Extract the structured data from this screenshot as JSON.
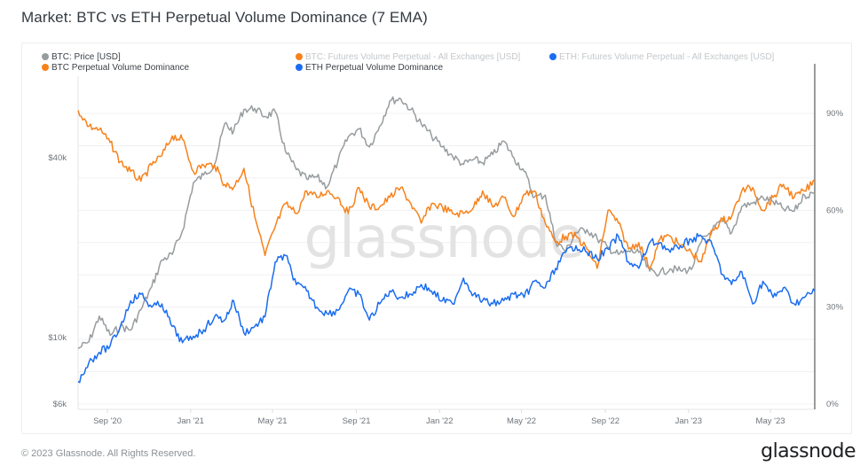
{
  "title": "Market: BTC vs ETH Perpetual Volume Dominance (7 EMA)",
  "footer": {
    "copyright": "© 2023 Glassnode. All Rights Reserved.",
    "brand": "glassnode"
  },
  "watermark": "glassnode",
  "colors": {
    "btc_price": "#979c9f",
    "btc_dominance": "#f7821b",
    "eth_dominance": "#1a6cf0",
    "grid": "#f0f0f0",
    "axis_text": "#6e747a"
  },
  "legend": [
    {
      "label": "BTC: Price [USD]",
      "color": "#979c9f",
      "active": true
    },
    {
      "label": "BTC Perpetual Volume Dominance",
      "color": "#f7821b",
      "active": true
    },
    {
      "label": "BTC: Futures Volume Perpetual - All Exchanges [USD]",
      "color": "#f7821b",
      "active": false
    },
    {
      "label": "ETH Perpetual Volume Dominance",
      "color": "#1a6cf0",
      "active": true
    },
    {
      "label": "ETH: Futures Volume Perpetual - All Exchanges [USD]",
      "color": "#1a6cf0",
      "active": false
    }
  ],
  "chart_data": {
    "type": "line",
    "title": "Market: BTC vs ETH Perpetual Volume Dominance (7 EMA)",
    "xlabel": "",
    "x_range": [
      "2020-07-20",
      "2023-07-05"
    ],
    "x_ticks": [
      "Sep '20",
      "Jan '21",
      "May '21",
      "Sep '21",
      "Jan '22",
      "May '22",
      "Sep '22",
      "Jan '23",
      "May '23"
    ],
    "x_tick_dates": [
      "2020-09-01",
      "2021-01-01",
      "2021-05-01",
      "2021-09-01",
      "2022-01-01",
      "2022-05-01",
      "2022-09-01",
      "2023-01-01",
      "2023-05-01"
    ],
    "y_left": {
      "label": "BTC Price [USD]",
      "scale": "log",
      "range": [
        6000,
        75000
      ],
      "ticks": [
        "$6k",
        "$10k",
        "$40k"
      ],
      "tick_values": [
        6000,
        10000,
        40000
      ]
    },
    "y_right": {
      "label": "Dominance",
      "scale": "linear",
      "range": [
        0,
        100
      ],
      "ticks": [
        "0%",
        "30%",
        "60%",
        "90%"
      ],
      "tick_values": [
        0,
        30,
        60,
        90
      ]
    },
    "grid": true,
    "legend_position": "top",
    "x_dates": [
      "2020-07-20",
      "2020-08-05",
      "2020-08-20",
      "2020-09-05",
      "2020-09-20",
      "2020-10-05",
      "2020-10-20",
      "2020-11-05",
      "2020-11-20",
      "2020-12-05",
      "2020-12-20",
      "2021-01-05",
      "2021-01-20",
      "2021-02-05",
      "2021-02-20",
      "2021-03-05",
      "2021-03-20",
      "2021-04-05",
      "2021-04-20",
      "2021-05-05",
      "2021-05-20",
      "2021-06-05",
      "2021-06-20",
      "2021-07-05",
      "2021-07-20",
      "2021-08-05",
      "2021-08-20",
      "2021-09-05",
      "2021-09-20",
      "2021-10-05",
      "2021-10-20",
      "2021-11-05",
      "2021-11-20",
      "2021-12-05",
      "2021-12-20",
      "2022-01-05",
      "2022-01-20",
      "2022-02-05",
      "2022-02-20",
      "2022-03-05",
      "2022-03-20",
      "2022-04-05",
      "2022-04-20",
      "2022-05-05",
      "2022-05-20",
      "2022-06-05",
      "2022-06-20",
      "2022-07-05",
      "2022-07-20",
      "2022-08-05",
      "2022-08-20",
      "2022-09-05",
      "2022-09-20",
      "2022-10-05",
      "2022-10-20",
      "2022-11-05",
      "2022-11-20",
      "2022-12-05",
      "2022-12-20",
      "2023-01-05",
      "2023-01-20",
      "2023-02-05",
      "2023-02-20",
      "2023-03-05",
      "2023-03-20",
      "2023-04-05",
      "2023-04-20",
      "2023-05-05",
      "2023-05-20",
      "2023-06-05",
      "2023-06-20",
      "2023-07-05"
    ],
    "series": [
      {
        "name": "BTC: Price [USD]",
        "axis": "left",
        "values": [
          9200,
          9700,
          11800,
          10200,
          10900,
          10600,
          12400,
          14800,
          18200,
          19000,
          22800,
          33000,
          35000,
          38000,
          52000,
          49000,
          58000,
          58500,
          55000,
          57000,
          42000,
          36500,
          34000,
          34500,
          32000,
          39000,
          47000,
          50000,
          43500,
          51000,
          62000,
          63000,
          58000,
          52000,
          47500,
          43500,
          40500,
          38000,
          39500,
          38500,
          41000,
          45500,
          40000,
          36000,
          29500,
          30000,
          21000,
          19500,
          22500,
          23000,
          21500,
          20000,
          19000,
          19500,
          19300,
          16700,
          16500,
          17000,
          16800,
          16900,
          21000,
          23000,
          24500,
          22400,
          27500,
          28200,
          29500,
          28500,
          27000,
          26500,
          30000,
          30300
        ]
      },
      {
        "name": "BTC Perpetual Volume Dominance",
        "axis": "right",
        "values": [
          91,
          86,
          85,
          81,
          75,
          72,
          69,
          74,
          77,
          83,
          82,
          72,
          74,
          74,
          68,
          67,
          73,
          58,
          46,
          55,
          62,
          59,
          66,
          64,
          66,
          64,
          59,
          67,
          61,
          61,
          64,
          67,
          62,
          56,
          62,
          61,
          59,
          59,
          61,
          66,
          61,
          64,
          58,
          65,
          66,
          56,
          50,
          52,
          52,
          48,
          42,
          60,
          56,
          48,
          50,
          42,
          51,
          52,
          49,
          47,
          44,
          54,
          57,
          58,
          66,
          67,
          60,
          64,
          68,
          64,
          66,
          69
        ]
      },
      {
        "name": "ETH Perpetual Volume Dominance",
        "axis": "right",
        "values": [
          7,
          13,
          16,
          18,
          24,
          32,
          34,
          30,
          31,
          24,
          19,
          21,
          23,
          27,
          26,
          32,
          22,
          24,
          27,
          44,
          46,
          37,
          35,
          30,
          28,
          29,
          35,
          34,
          26,
          31,
          35,
          33,
          34,
          37,
          35,
          32,
          31,
          39,
          34,
          32,
          31,
          32,
          34,
          33,
          38,
          36,
          42,
          47,
          49,
          47,
          45,
          48,
          52,
          44,
          42,
          50,
          50,
          47,
          49,
          51,
          52,
          49,
          40,
          37,
          41,
          31,
          38,
          33,
          36,
          31,
          33,
          35
        ]
      }
    ]
  }
}
